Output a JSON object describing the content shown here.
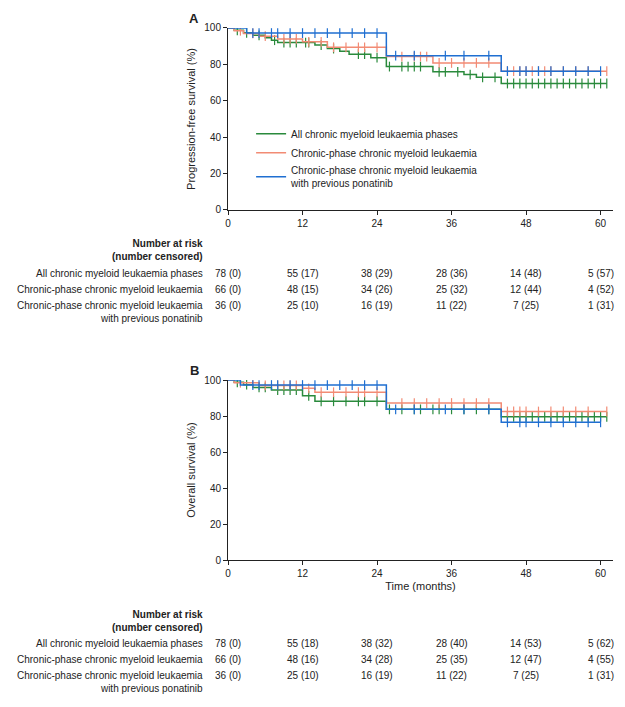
{
  "chart_data": [
    {
      "type": "line",
      "title": "A",
      "ylabel": "Progression-free survival (%)",
      "xlim": [
        0,
        62
      ],
      "ylim": [
        0,
        100
      ],
      "xticks": [
        0,
        12,
        24,
        36,
        48,
        60
      ],
      "yticks": [
        0,
        20,
        40,
        60,
        80,
        100
      ],
      "grid": false,
      "legend": "lower left",
      "line_style": "step",
      "marker": "tick",
      "series": [
        {
          "name": "All chronic myeloid leukaemia phases",
          "color": "#2a8a3c",
          "x": [
            0,
            1,
            2.5,
            4,
            6,
            7,
            8,
            14,
            16,
            18,
            19.5,
            23,
            25.5,
            33,
            38,
            40,
            44,
            61
          ],
          "values": [
            100,
            98.7,
            97.4,
            96,
            94.6,
            93.3,
            92,
            90.6,
            88.7,
            87.2,
            85.6,
            83.7,
            78.8,
            75.9,
            74.4,
            72.9,
            69.5,
            69.5
          ],
          "censored": [
            1.5,
            3,
            5,
            7.5,
            9,
            10,
            11,
            12.5,
            13,
            15,
            17,
            21,
            22,
            24,
            26,
            28,
            29,
            30,
            31,
            34,
            35,
            37,
            39,
            41,
            43,
            45,
            46,
            47,
            48,
            49,
            50,
            51,
            52,
            53,
            54,
            55,
            56,
            57,
            58,
            59,
            60,
            61
          ]
        },
        {
          "name": "Chronic-phase chronic myeloid leukaemia",
          "color": "#f28b74",
          "x": [
            0,
            1,
            2.5,
            5,
            8,
            12,
            16,
            25.5,
            33,
            44,
            61
          ],
          "values": [
            100,
            98.5,
            97,
            95.5,
            94,
            92.4,
            89.4,
            84.3,
            80.8,
            76.3,
            76.3
          ],
          "censored": [
            2,
            4,
            6,
            9,
            10,
            11,
            13,
            15,
            17,
            19,
            21,
            22,
            24,
            28,
            30,
            31,
            32,
            34,
            36,
            38,
            40,
            42,
            45,
            46,
            47,
            48,
            49,
            50,
            51,
            52,
            54,
            56,
            58,
            61
          ]
        },
        {
          "name": "Chronic-phase chronic myeloid leukaemia\nwith previous ponatinib",
          "color": "#1f6fd1",
          "x": [
            0,
            3,
            25.5,
            44,
            60
          ],
          "values": [
            100,
            97.2,
            84.8,
            76.3,
            76.3
          ],
          "censored": [
            4,
            5,
            7,
            8,
            10,
            12,
            14,
            16,
            18,
            20,
            22,
            24,
            27,
            30,
            35,
            38,
            42,
            45,
            47,
            48,
            50,
            52,
            54,
            56,
            58,
            60
          ]
        }
      ],
      "risk_table": {
        "title": "Number at risk\n(number censored)",
        "time_points": [
          0,
          12,
          24,
          36,
          48,
          60
        ],
        "rows": [
          {
            "label": "All chronic myeloid leukaemia phases",
            "values": [
              "78 (0)",
              "55 (17)",
              "38 (29)",
              "28 (36)",
              "14 (48)",
              "5 (57)"
            ]
          },
          {
            "label": "Chronic-phase chronic myeloid leukaemia",
            "values": [
              "66 (0)",
              "48 (15)",
              "34 (26)",
              "25 (32)",
              "12 (44)",
              "4 (52)"
            ]
          },
          {
            "label": "Chronic-phase chronic myeloid leukaemia\nwith previous ponatinib",
            "values": [
              "36 (0)",
              "25 (10)",
              "16 (19)",
              "11 (22)",
              "7 (25)",
              "1 (31)"
            ]
          }
        ]
      }
    },
    {
      "type": "line",
      "title": "B",
      "ylabel": "Overall survival (%)",
      "xlabel": "Time (months)",
      "xlim": [
        0,
        62
      ],
      "ylim": [
        0,
        100
      ],
      "xticks": [
        0,
        12,
        24,
        36,
        48,
        60
      ],
      "yticks": [
        0,
        20,
        40,
        60,
        80,
        100
      ],
      "grid": false,
      "line_style": "step",
      "marker": "tick",
      "series": [
        {
          "color": "#2a8a3c",
          "x": [
            0,
            1,
            2.5,
            4,
            7,
            12,
            14,
            25.5,
            44,
            61
          ],
          "values": [
            100,
            98.7,
            97.4,
            95.9,
            94.4,
            91.2,
            88.2,
            83.7,
            79.6,
            79.6
          ],
          "censored": [
            1.5,
            3,
            5,
            6,
            8,
            9,
            10,
            11,
            13,
            15,
            17,
            19,
            21,
            22,
            24,
            26,
            28,
            30,
            31,
            33,
            34,
            36,
            38,
            40,
            42,
            45,
            46,
            47,
            48,
            49,
            50,
            51,
            52,
            53,
            54,
            55,
            56,
            57,
            58,
            59,
            60,
            61
          ]
        },
        {
          "color": "#f28b74",
          "x": [
            0,
            1,
            5,
            12,
            14,
            25.5,
            44,
            61
          ],
          "values": [
            100,
            98.5,
            97,
            95.4,
            93.2,
            87.2,
            82.5,
            82.5
          ],
          "censored": [
            2,
            4,
            6,
            8,
            9,
            10,
            11,
            13,
            15,
            17,
            19,
            21,
            22,
            24,
            28,
            30,
            32,
            34,
            36,
            38,
            40,
            42,
            45,
            46,
            47,
            48,
            50,
            52,
            54,
            56,
            58,
            61
          ]
        },
        {
          "color": "#1f6fd1",
          "x": [
            0,
            2,
            25.5,
            44,
            60
          ],
          "values": [
            100,
            97.2,
            83.7,
            76.5,
            76.5
          ],
          "censored": [
            4,
            5,
            7,
            8,
            10,
            12,
            14,
            16,
            18,
            20,
            22,
            24,
            27,
            30,
            35,
            38,
            42,
            45,
            47,
            48,
            50,
            52,
            54,
            56,
            58,
            60
          ]
        }
      ],
      "risk_table": {
        "title": "Number at risk\n(number censored)",
        "time_points": [
          0,
          12,
          24,
          36,
          48,
          60
        ],
        "rows": [
          {
            "label": "All chronic myeloid leukaemia phases",
            "values": [
              "78 (0)",
              "55 (18)",
              "38 (32)",
              "28 (40)",
              "14 (53)",
              "5 (62)"
            ]
          },
          {
            "label": "Chronic-phase chronic myeloid leukaemia",
            "values": [
              "66 (0)",
              "48 (16)",
              "34 (28)",
              "25 (35)",
              "12 (47)",
              "4 (55)"
            ]
          },
          {
            "label": "Chronic-phase chronic myeloid leukaemia\nwith previous ponatinib",
            "values": [
              "36 (0)",
              "25 (10)",
              "16 (19)",
              "11 (22)",
              "7 (25)",
              "1 (31)"
            ]
          }
        ]
      }
    }
  ]
}
